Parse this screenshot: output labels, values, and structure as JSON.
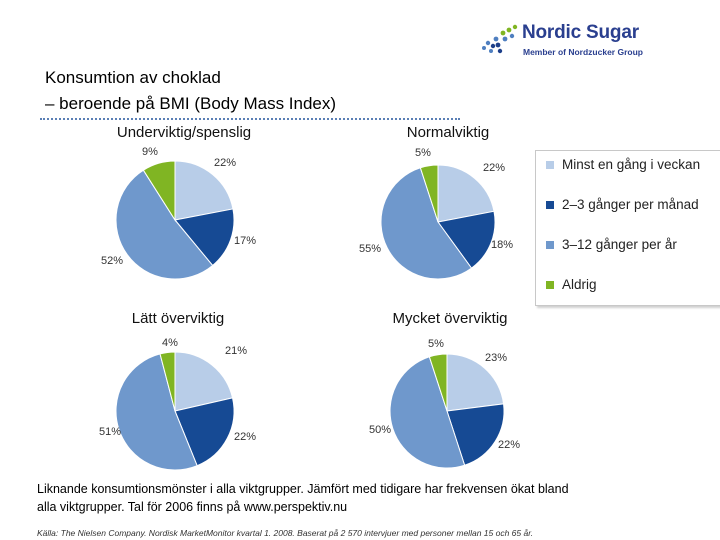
{
  "logo": {
    "name": "Nordic Sugar",
    "tagline": "Member of Nordzucker Group"
  },
  "title": {
    "line1": "Konsumtion av choklad",
    "line2": "– beroende på BMI (Body Mass Index)"
  },
  "colors": {
    "series": [
      "#b8cde8",
      "#164a94",
      "#6f98cc",
      "#80b523"
    ],
    "logo_primary": "#2a3f8f",
    "logo_dots": "#4f7fc0",
    "logo_accent": "#80b523",
    "separator": "#5a7fb5"
  },
  "chart_data": [
    {
      "type": "pie",
      "title": "Underviktig/spenslig",
      "categories": [
        "Minst en gång i veckan",
        "2–3 gånger per månad",
        "3–12 gånger per år",
        "Aldrig"
      ],
      "values": [
        22,
        17,
        52,
        9
      ],
      "labels": [
        "22%",
        "17%",
        "52%",
        "9%"
      ]
    },
    {
      "type": "pie",
      "title": "Normalviktig",
      "categories": [
        "Minst en gång i veckan",
        "2–3 gånger per månad",
        "3–12 gånger per år",
        "Aldrig"
      ],
      "values": [
        22,
        18,
        55,
        5
      ],
      "labels": [
        "22%",
        "18%",
        "55%",
        "5%"
      ]
    },
    {
      "type": "pie",
      "title": "Lätt överviktig",
      "categories": [
        "Minst en gång i veckan",
        "2–3 gånger per månad",
        "3–12 gånger per år",
        "Aldrig"
      ],
      "values": [
        21,
        22,
        51,
        4
      ],
      "labels": [
        "21%",
        "22%",
        "51%",
        "4%"
      ]
    },
    {
      "type": "pie",
      "title": "Mycket överviktig",
      "categories": [
        "Minst en gång i veckan",
        "2–3 gånger per månad",
        "3–12 gånger per år",
        "Aldrig"
      ],
      "values": [
        23,
        22,
        50,
        5
      ],
      "labels": [
        "23%",
        "22%",
        "50%",
        "5%"
      ]
    }
  ],
  "legend": {
    "items": [
      "Minst en gång i veckan",
      "2–3 gånger per månad",
      "3–12 gånger per år",
      "Aldrig"
    ]
  },
  "footer": {
    "line1": "Liknande konsumtionsmönster i alla viktgrupper. Jämfört med tidigare har frekvensen ökat bland",
    "line2": "alla viktgrupper. Tal för 2006 finns på www.perspektiv.nu",
    "source": "Källa: The Nielsen Company. Nordisk MarketMonitor kvartal 1. 2008. Baserat på 2 570 intervjuer med personer mellan 15 och 65 år."
  }
}
